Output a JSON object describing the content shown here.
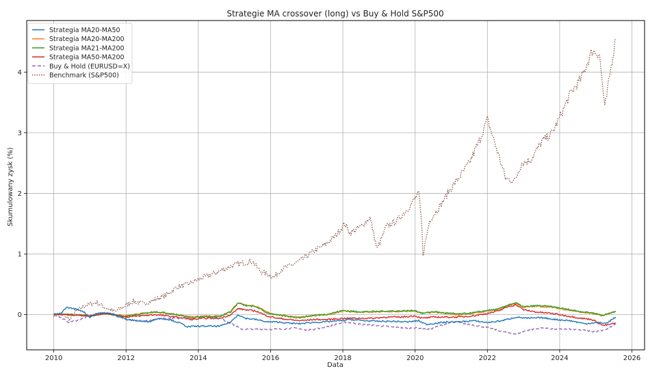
{
  "chart_data": {
    "type": "line",
    "title": "Strategie MA crossover (long) vs Buy & Hold S&P500",
    "xlabel": "Data",
    "ylabel": "Skumulowany zysk (%)",
    "xlim": [
      2009.25,
      2026.35
    ],
    "ylim": [
      -0.58,
      4.85
    ],
    "x_ticks": [
      2010,
      2012,
      2014,
      2016,
      2018,
      2020,
      2022,
      2024,
      2026
    ],
    "y_ticks": [
      0,
      1,
      2,
      3,
      4
    ],
    "grid": true,
    "legend_position": "top-left",
    "colors": {
      "ma20_ma50": "#1f77b4",
      "ma20_ma200": "#ff7f0e",
      "ma21_ma200": "#2ca02c",
      "ma50_ma200": "#d62728",
      "buy_hold": "#9467bd",
      "benchmark": "#8c564b",
      "grid": "#b0b0b0",
      "axis": "#000000"
    },
    "series": [
      {
        "name": "Strategia MA20-MA50",
        "style": "solid",
        "color": "#1f77b4",
        "x": [
          2010.0,
          2010.2,
          2010.35,
          2010.55,
          2010.8,
          2011.0,
          2011.2,
          2011.45,
          2011.7,
          2012.0,
          2012.3,
          2012.6,
          2012.9,
          2013.2,
          2013.5,
          2013.7,
          2014.0,
          2014.3,
          2014.6,
          2014.9,
          2015.1,
          2015.3,
          2015.6,
          2015.9,
          2016.2,
          2016.5,
          2016.8,
          2017.1,
          2017.5,
          2017.9,
          2018.2,
          2018.6,
          2019.0,
          2019.4,
          2019.8,
          2020.1,
          2020.3,
          2020.6,
          2020.9,
          2021.2,
          2021.6,
          2022.0,
          2022.4,
          2022.8,
          2023.1,
          2023.5,
          2023.9,
          2024.3,
          2024.7,
          2025.0,
          2025.3,
          2025.55
        ],
        "y": [
          0.0,
          0.02,
          0.12,
          0.1,
          0.06,
          -0.04,
          0.02,
          0.03,
          0.0,
          -0.08,
          -0.1,
          -0.12,
          -0.06,
          -0.08,
          -0.14,
          -0.2,
          -0.19,
          -0.19,
          -0.19,
          -0.12,
          0.0,
          -0.06,
          -0.08,
          -0.12,
          -0.12,
          -0.14,
          -0.15,
          -0.13,
          -0.12,
          -0.1,
          -0.08,
          -0.1,
          -0.11,
          -0.11,
          -0.12,
          -0.1,
          -0.16,
          -0.14,
          -0.12,
          -0.12,
          -0.1,
          -0.13,
          -0.1,
          -0.04,
          -0.06,
          -0.05,
          -0.08,
          -0.1,
          -0.15,
          -0.13,
          -0.14,
          -0.04
        ]
      },
      {
        "name": "Strategia MA20-MA200",
        "style": "solid",
        "color": "#ff7f0e",
        "x": [
          2010.0,
          2010.5,
          2011.0,
          2011.4,
          2011.7,
          2012.0,
          2012.4,
          2012.8,
          2013.1,
          2013.4,
          2013.8,
          2014.2,
          2014.6,
          2014.9,
          2015.1,
          2015.3,
          2015.6,
          2015.9,
          2016.2,
          2016.5,
          2016.8,
          2017.2,
          2017.6,
          2018.0,
          2018.4,
          2018.8,
          2019.2,
          2019.6,
          2020.0,
          2020.2,
          2020.5,
          2020.8,
          2021.2,
          2021.6,
          2022.0,
          2022.3,
          2022.6,
          2022.8,
          2023.0,
          2023.4,
          2023.8,
          2024.2,
          2024.6,
          2024.9,
          2025.2,
          2025.55
        ],
        "y": [
          0.0,
          0.0,
          -0.02,
          0.02,
          0.0,
          -0.02,
          0.02,
          0.04,
          0.02,
          0.0,
          -0.04,
          -0.02,
          -0.02,
          0.06,
          0.2,
          0.16,
          0.14,
          0.04,
          0.0,
          -0.02,
          -0.04,
          -0.02,
          0.0,
          0.06,
          0.04,
          0.04,
          0.05,
          0.05,
          0.06,
          0.02,
          0.04,
          0.02,
          0.0,
          0.02,
          0.06,
          0.08,
          0.16,
          0.18,
          0.12,
          0.14,
          0.12,
          0.08,
          0.04,
          0.02,
          -0.02,
          0.06
        ]
      },
      {
        "name": "Strategia MA21-MA200",
        "style": "solid",
        "color": "#2ca02c",
        "x": [
          2010.0,
          2010.5,
          2011.0,
          2011.4,
          2011.7,
          2012.0,
          2012.4,
          2012.8,
          2013.1,
          2013.4,
          2013.8,
          2014.2,
          2014.6,
          2014.9,
          2015.1,
          2015.3,
          2015.6,
          2015.9,
          2016.2,
          2016.5,
          2016.8,
          2017.2,
          2017.6,
          2018.0,
          2018.4,
          2018.8,
          2019.2,
          2019.6,
          2020.0,
          2020.2,
          2020.5,
          2020.8,
          2021.2,
          2021.6,
          2022.0,
          2022.3,
          2022.6,
          2022.8,
          2023.0,
          2023.4,
          2023.8,
          2024.2,
          2024.6,
          2024.9,
          2025.2,
          2025.55
        ],
        "y": [
          0.0,
          0.0,
          -0.02,
          0.02,
          0.0,
          -0.03,
          0.01,
          0.05,
          0.03,
          0.0,
          -0.05,
          -0.03,
          -0.03,
          0.05,
          0.19,
          0.15,
          0.13,
          0.03,
          -0.01,
          -0.03,
          -0.05,
          -0.01,
          0.01,
          0.07,
          0.05,
          0.05,
          0.06,
          0.06,
          0.07,
          0.02,
          0.05,
          0.03,
          0.01,
          0.03,
          0.07,
          0.09,
          0.17,
          0.19,
          0.13,
          0.15,
          0.13,
          0.09,
          0.05,
          0.03,
          -0.01,
          0.06
        ]
      },
      {
        "name": "Strategia MA50-MA200",
        "style": "solid",
        "color": "#d62728",
        "x": [
          2010.0,
          2010.5,
          2011.0,
          2011.4,
          2011.7,
          2012.0,
          2012.4,
          2012.8,
          2013.1,
          2013.4,
          2013.8,
          2014.2,
          2014.6,
          2014.9,
          2015.1,
          2015.3,
          2015.6,
          2015.9,
          2016.2,
          2016.5,
          2016.8,
          2017.2,
          2017.6,
          2018.0,
          2018.4,
          2018.8,
          2019.2,
          2019.6,
          2020.0,
          2020.2,
          2020.5,
          2020.8,
          2021.2,
          2021.6,
          2022.0,
          2022.3,
          2022.6,
          2022.8,
          2023.0,
          2023.4,
          2023.8,
          2024.2,
          2024.6,
          2024.9,
          2025.2,
          2025.55
        ],
        "y": [
          0.0,
          0.0,
          -0.02,
          0.02,
          0.0,
          -0.04,
          -0.02,
          0.0,
          -0.02,
          -0.04,
          -0.08,
          -0.06,
          -0.06,
          0.0,
          0.1,
          0.08,
          0.06,
          -0.02,
          -0.06,
          -0.08,
          -0.1,
          -0.08,
          -0.08,
          -0.06,
          -0.06,
          -0.06,
          -0.04,
          -0.04,
          -0.02,
          -0.06,
          -0.04,
          -0.04,
          -0.04,
          -0.02,
          0.02,
          0.06,
          0.14,
          0.16,
          0.08,
          0.04,
          0.02,
          -0.02,
          -0.06,
          -0.08,
          -0.18,
          -0.14
        ]
      },
      {
        "name": "Buy & Hold (EURUSD=X)",
        "style": "dashed",
        "color": "#9467bd",
        "x": [
          2010.0,
          2010.2,
          2010.4,
          2010.6,
          2010.9,
          2011.2,
          2011.5,
          2011.8,
          2012.1,
          2012.4,
          2012.7,
          2013.0,
          2013.4,
          2013.8,
          2014.2,
          2014.6,
          2014.9,
          2015.2,
          2015.5,
          2015.9,
          2016.3,
          2016.7,
          2017.0,
          2017.4,
          2017.8,
          2018.1,
          2018.5,
          2018.9,
          2019.3,
          2019.7,
          2020.1,
          2020.4,
          2020.8,
          2021.1,
          2021.5,
          2021.9,
          2022.3,
          2022.6,
          2022.8,
          2023.1,
          2023.5,
          2023.9,
          2024.3,
          2024.7,
          2025.0,
          2025.3,
          2025.55
        ],
        "y": [
          0.0,
          -0.05,
          -0.12,
          -0.1,
          -0.04,
          0.02,
          0.03,
          -0.04,
          -0.08,
          -0.1,
          -0.1,
          -0.06,
          -0.06,
          -0.04,
          -0.02,
          -0.06,
          -0.14,
          -0.24,
          -0.24,
          -0.24,
          -0.24,
          -0.22,
          -0.26,
          -0.22,
          -0.16,
          -0.12,
          -0.16,
          -0.18,
          -0.2,
          -0.22,
          -0.22,
          -0.24,
          -0.16,
          -0.12,
          -0.16,
          -0.2,
          -0.26,
          -0.3,
          -0.32,
          -0.26,
          -0.22,
          -0.24,
          -0.24,
          -0.26,
          -0.28,
          -0.24,
          -0.16
        ]
      },
      {
        "name": "Benchmark (S&P500)",
        "style": "dotted",
        "color": "#8c564b",
        "x": [
          2010.0,
          2010.2,
          2010.45,
          2010.6,
          2010.9,
          2011.2,
          2011.4,
          2011.7,
          2011.9,
          2012.2,
          2012.5,
          2012.8,
          2013.1,
          2013.4,
          2013.7,
          2014.0,
          2014.3,
          2014.6,
          2014.9,
          2015.2,
          2015.5,
          2015.7,
          2016.1,
          2016.3,
          2016.6,
          2016.9,
          2017.2,
          2017.5,
          2017.8,
          2018.05,
          2018.2,
          2018.5,
          2018.75,
          2018.95,
          2019.2,
          2019.5,
          2019.8,
          2020.1,
          2020.18,
          2020.22,
          2020.4,
          2020.7,
          2020.95,
          2021.2,
          2021.5,
          2021.8,
          2022.0,
          2022.3,
          2022.5,
          2022.75,
          2022.95,
          2023.2,
          2023.5,
          2023.8,
          2024.0,
          2024.3,
          2024.6,
          2024.9,
          2025.1,
          2025.25,
          2025.4,
          2025.55
        ],
        "y": [
          0.0,
          0.02,
          -0.08,
          0.05,
          0.16,
          0.2,
          0.12,
          0.05,
          0.12,
          0.22,
          0.18,
          0.25,
          0.32,
          0.45,
          0.5,
          0.58,
          0.65,
          0.72,
          0.8,
          0.85,
          0.88,
          0.72,
          0.62,
          0.75,
          0.82,
          0.92,
          1.05,
          1.15,
          1.3,
          1.5,
          1.35,
          1.45,
          1.6,
          1.08,
          1.45,
          1.55,
          1.75,
          2.0,
          1.5,
          1.0,
          1.55,
          1.8,
          2.05,
          2.25,
          2.5,
          2.9,
          3.22,
          2.65,
          2.25,
          2.2,
          2.5,
          2.55,
          2.85,
          3.0,
          3.25,
          3.65,
          3.9,
          4.35,
          4.3,
          3.4,
          4.0,
          4.55
        ]
      }
    ]
  }
}
